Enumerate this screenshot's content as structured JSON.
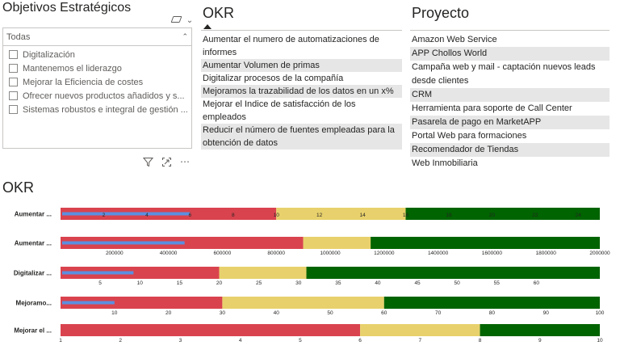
{
  "slicer": {
    "title": "Objetivos Estratégicos",
    "header": "Todas",
    "items": [
      {
        "label": "Digitalización"
      },
      {
        "label": "Mantenemos el liderazgo"
      },
      {
        "label": "Mejorar la Eficiencia de costes"
      },
      {
        "label": "Ofrecer nuevos productos añadidos y s..."
      },
      {
        "label": "Sistemas robustos e integral de gestión ..."
      }
    ],
    "icons": [
      "eraser-icon",
      "chevron-down-icon",
      "chevron-up-icon"
    ]
  },
  "visual_toolbar": {
    "filter_icon": "⧩",
    "focus_icon": "⧉",
    "more_icon": "⋯"
  },
  "okr_table": {
    "header": "OKR",
    "sort": "ascending",
    "rows": [
      "Aumentar el numero de automatizaciones de informes",
      "Aumentar Volumen de primas",
      "Digitalizar procesos de la compañía",
      "Mejoramos la trazabilidad de los datos en un x%",
      "Mejorar el Indice de satisfacción de los empleados",
      "Reducir el número de fuentes empleadas para la obtención de datos"
    ]
  },
  "project_table": {
    "header": "Proyecto",
    "rows": [
      "Amazon Web Service",
      "APP Chollos World",
      "Campaña web y mail - captación nuevos leads desde clientes",
      "CRM",
      "Herramienta para soporte de Call Center",
      "Pasarela de pago en MarketAPP",
      "Portal Web para formaciones",
      "Recomendador de Tiendas",
      "Web Inmobiliaria"
    ]
  },
  "chart_data": {
    "type": "bullet",
    "title": "OKR",
    "colors": {
      "bad": "#d9434e",
      "ok": "#e8d16c",
      "good": "#006400",
      "actual": "#5b8fe0"
    },
    "bars": [
      {
        "label": "Aumentar ...",
        "min": 0,
        "max": 25,
        "ranges": [
          10,
          16,
          25
        ],
        "actual": 6,
        "ticks": [
          "2",
          "4",
          "6",
          "8",
          "10",
          "12",
          "14",
          "16",
          "18",
          "20",
          "22",
          "24"
        ],
        "tick_values": [
          2,
          4,
          6,
          8,
          10,
          12,
          14,
          16,
          18,
          20,
          22,
          24
        ],
        "tick_row": "inline"
      },
      {
        "label": "Aumentar ...",
        "min": 0,
        "max": 2000000,
        "ranges": [
          900000,
          1150000,
          2000000
        ],
        "actual": 460000,
        "ticks": [
          "200000",
          "400000",
          "600000",
          "800000",
          "1000000",
          "1200000",
          "1400000",
          "1600000",
          "1800000",
          "2000000"
        ],
        "tick_values": [
          200000,
          400000,
          600000,
          800000,
          1000000,
          1200000,
          1400000,
          1600000,
          1800000,
          2000000
        ],
        "tick_row": "below"
      },
      {
        "label": "Digitalizar ...",
        "min": 0,
        "max": 68,
        "ranges": [
          20,
          31,
          68
        ],
        "actual": 9.2,
        "ticks": [
          "5",
          "10",
          "15",
          "20",
          "25",
          "30",
          "35",
          "40",
          "45",
          "50",
          "55",
          "60"
        ],
        "tick_values": [
          5,
          10,
          15,
          20,
          25,
          30,
          35,
          40,
          45,
          50,
          55,
          60
        ],
        "tick_row": "below"
      },
      {
        "label": "Mejoramo...",
        "min": 0,
        "max": 100,
        "ranges": [
          30,
          60,
          100
        ],
        "actual": 10,
        "ticks": [
          "10",
          "20",
          "30",
          "40",
          "50",
          "60",
          "70",
          "80",
          "90",
          "100"
        ],
        "tick_values": [
          10,
          20,
          30,
          40,
          50,
          60,
          70,
          80,
          90,
          100
        ],
        "tick_row": "below"
      },
      {
        "label": "Mejorar el ...",
        "min": 1,
        "max": 10,
        "ranges": [
          6,
          8,
          10
        ],
        "actual": null,
        "ticks": [
          "1",
          "2",
          "3",
          "4",
          "5",
          "6",
          "7",
          "8",
          "9",
          "10"
        ],
        "tick_values": [
          1,
          2,
          3,
          4,
          5,
          6,
          7,
          8,
          9,
          10
        ],
        "tick_row": "below"
      }
    ]
  }
}
